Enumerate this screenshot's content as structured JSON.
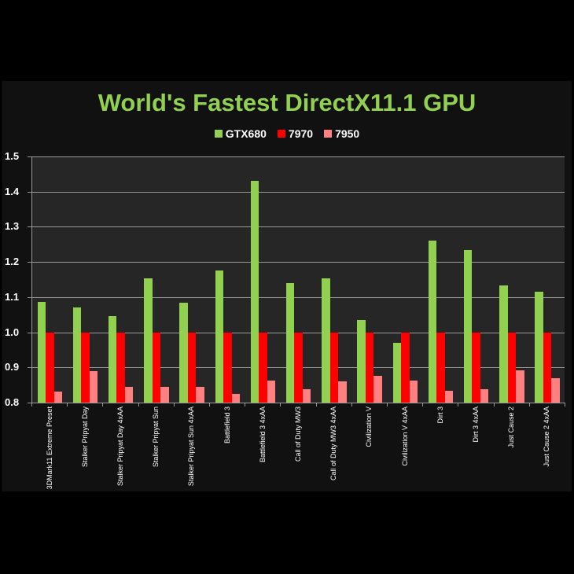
{
  "chart_data": {
    "type": "bar",
    "title": "World's Fastest DirectX11.1 GPU",
    "xlabel": "",
    "ylabel": "",
    "ylim": [
      0.8,
      1.5
    ],
    "yticks": [
      "0.8",
      "0.9",
      "1.0",
      "1.1",
      "1.2",
      "1.3",
      "1.4",
      "1.5"
    ],
    "grid": true,
    "legend_position": "top",
    "categories": [
      "3DMark11 Extreme Preset",
      "Stalker Pripyat Day",
      "Stalker Pripyat Day 4xAA",
      "Stalker Pripyat Sun",
      "Stalker Pripyat Sun 4xAA",
      "Battlefield 3",
      "Battlefield 3 4xAA",
      "Call of Duty MW3",
      "Call of Duty MW3 4xAA",
      "Civilization V",
      "Civilization V 4xAA",
      "Dirt 3",
      "Dirt 3 4xAA",
      "Just Cause 2",
      "Just Cause 2 4xAA"
    ],
    "series": [
      {
        "name": "GTX680",
        "color": "#92d050",
        "values": [
          1.087,
          1.07,
          1.045,
          1.154,
          1.083,
          1.175,
          1.431,
          1.139,
          1.153,
          1.034,
          0.97,
          1.26,
          1.233,
          1.133,
          1.115
        ]
      },
      {
        "name": "7970",
        "color": "#ff0000",
        "values": [
          1.0,
          1.0,
          1.0,
          1.0,
          1.0,
          1.0,
          1.0,
          1.0,
          1.0,
          1.0,
          1.0,
          1.0,
          1.0,
          1.0,
          1.0
        ]
      },
      {
        "name": "7950",
        "color": "#ff8080",
        "values": [
          0.832,
          0.889,
          0.845,
          0.845,
          0.845,
          0.825,
          0.862,
          0.838,
          0.86,
          0.876,
          0.862,
          0.833,
          0.838,
          0.891,
          0.869
        ]
      }
    ]
  },
  "colors": {
    "title": "#92d050",
    "background": "#000000",
    "panel": "#111111",
    "plot": "#262626",
    "grid": "#9a9a9a",
    "text": "#ffffff"
  }
}
